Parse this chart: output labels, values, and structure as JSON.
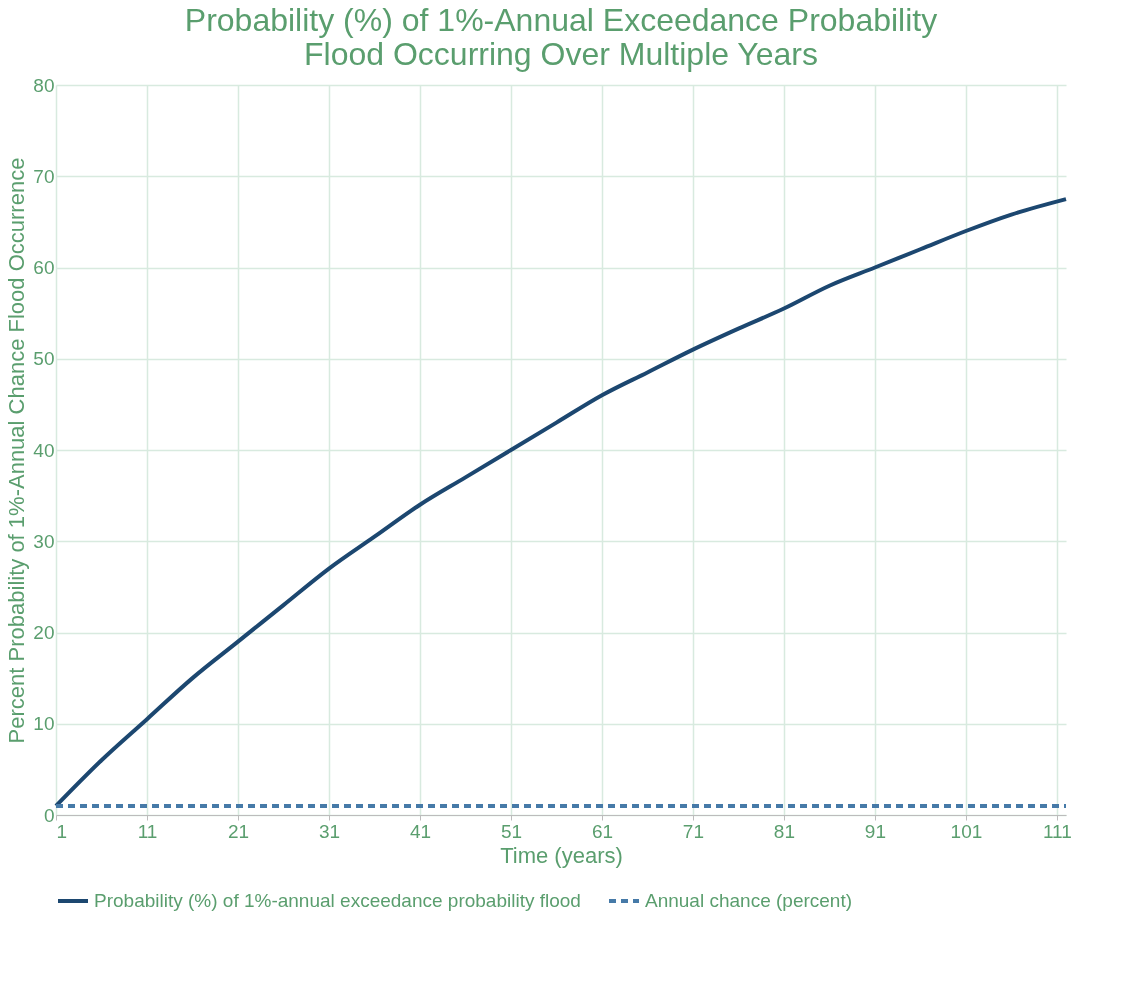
{
  "chart_data": {
    "type": "line",
    "title": "Probability (%) of 1%-Annual Exceedance Probability",
    "subtitle": "Flood Occurring Over Multiple Years",
    "xlabel": "Time (years)",
    "ylabel": "Percent Probability of 1%-Annual Chance Flood Occurrence",
    "xlim": [
      1,
      112
    ],
    "xticks": [
      1,
      11,
      21,
      31,
      41,
      51,
      61,
      71,
      81,
      91,
      101,
      111
    ],
    "ylim": [
      0,
      80
    ],
    "yticks": [
      0,
      10,
      20,
      30,
      40,
      50,
      60,
      70,
      80
    ],
    "grid": true,
    "legend": "bottom",
    "marker": "none",
    "series": [
      {
        "name": "Probability (%) of 1%-annual exceedance probability flood",
        "color": "#1c4770",
        "line_style": "solid",
        "x": [
          1,
          6,
          11,
          16,
          21,
          26,
          31,
          36,
          41,
          46,
          51,
          56,
          61,
          66,
          71,
          76,
          81,
          86,
          91,
          96,
          101,
          106,
          112
        ],
        "values": [
          1,
          6,
          10.5,
          15,
          19,
          23,
          27,
          30.5,
          34,
          37,
          40,
          43,
          46,
          48.5,
          51,
          53.3,
          55.5,
          58,
          60,
          62,
          64,
          65.8,
          67.5
        ]
      },
      {
        "name": "Annual chance (percent)",
        "color": "#467aa8",
        "line_style": "dashed",
        "x": [
          1,
          112
        ],
        "values": [
          1,
          1
        ]
      }
    ]
  }
}
